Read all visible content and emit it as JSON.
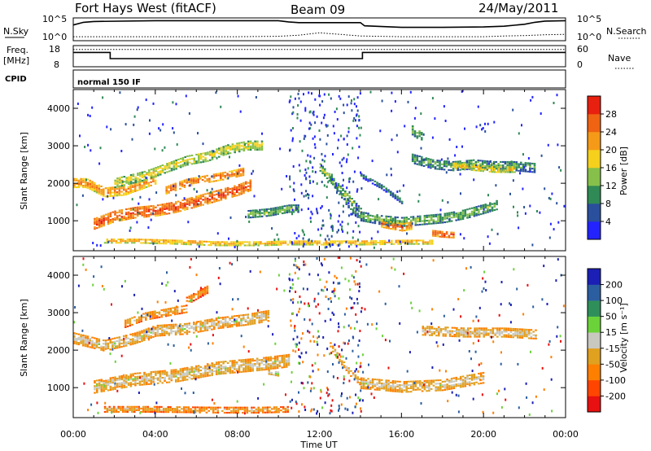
{
  "header": {
    "radar": "Fort Hays West (fitACF)",
    "beam": "Beam 09",
    "date": "24/May/2011"
  },
  "noise_panel": {
    "left_label": "N.Sky",
    "right_label": "N.Search",
    "left_ticks": [
      "10^5",
      "10^0"
    ],
    "right_ticks": [
      "10^5",
      "10^0"
    ]
  },
  "freq_panel": {
    "left_label_1": "Freq.",
    "left_label_2": "[MHz]",
    "right_label": "Nave",
    "left_ticks": [
      "18",
      "8"
    ],
    "right_ticks": [
      "60",
      "0"
    ]
  },
  "cpid_panel": {
    "label": "CPID",
    "program": "normal 150 IF"
  },
  "power_panel": {
    "ylabel": "Slant Range [km]",
    "colorbar_label": "Power [dB]",
    "colorbar_ticks": [
      "28",
      "24",
      "20",
      "16",
      "12",
      "8",
      "4"
    ],
    "colors": [
      "#2323ff",
      "#2a4f9c",
      "#2f8a55",
      "#86c04a",
      "#f5d01d",
      "#f59a18",
      "#f06313",
      "#e8200f"
    ]
  },
  "velocity_panel": {
    "ylabel": "Slant Range [km]",
    "colorbar_label": "Velocity [m s⁻¹]",
    "colorbar_ticks": [
      "200",
      "100",
      "50",
      "15",
      "-15",
      "-50",
      "-100",
      "-200"
    ],
    "colors": [
      "#1b1fb5",
      "#2b5ea0",
      "#2f8f5a",
      "#6bd23a",
      "#c8c8c0",
      "#e0a020",
      "#ff7f00",
      "#ff4500",
      "#e81010"
    ]
  },
  "x_axis": {
    "label": "Time UT",
    "ticks": [
      "00:00",
      "04:00",
      "08:00",
      "12:00",
      "16:00",
      "20:00",
      "00:00"
    ]
  },
  "y_ticks": [
    "1000",
    "2000",
    "3000",
    "4000"
  ],
  "chart_data": [
    {
      "type": "line",
      "title": "Fort Hays West (fitACF)",
      "ylabel": "N.Sky",
      "xlim": [
        0,
        24
      ],
      "ylim": [
        0,
        5
      ],
      "series": [
        {
          "name": "N.Sky",
          "x": [
            0,
            0.5,
            1,
            4,
            8,
            10,
            10.5,
            11,
            12,
            13,
            14,
            14.2,
            16,
            18,
            20,
            21,
            22,
            22.5,
            23,
            24
          ],
          "y": [
            3.6,
            4.3,
            4.5,
            4.7,
            4.7,
            4.7,
            4.4,
            4.2,
            4.2,
            4.2,
            4.2,
            3.4,
            3.0,
            3.0,
            3.1,
            3.3,
            3.8,
            4.3,
            4.6,
            4.7
          ]
        },
        {
          "name": "N.Search",
          "x": [
            0,
            2,
            4,
            8,
            10,
            11,
            12,
            13,
            14,
            16,
            20,
            21,
            22,
            23,
            24
          ],
          "y": [
            0.6,
            0.6,
            0.6,
            0.6,
            0.7,
            1.0,
            1.6,
            1.2,
            0.8,
            0.6,
            0.6,
            0.8,
            0.9,
            1.1,
            1.2
          ]
        }
      ]
    },
    {
      "type": "line",
      "ylabel": "Freq. [MHz]",
      "xlim": [
        0,
        24
      ],
      "ylim": [
        8,
        18
      ],
      "series": [
        {
          "name": "Freq.",
          "x": [
            0,
            1.8,
            1.8,
            14.1,
            14.1,
            24
          ],
          "y": [
            15.8,
            15.8,
            12.0,
            12.0,
            15.8,
            15.8
          ]
        },
        {
          "name": "Nave",
          "x": [
            0,
            24
          ],
          "y": [
            17.6,
            17.6
          ]
        }
      ]
    },
    {
      "type": "heatmap",
      "ylabel": "Slant Range [km]",
      "xlabel": "Time UT",
      "xlim": [
        0,
        24
      ],
      "ylim": [
        200,
        4500
      ],
      "colorbar": "Power [dB]",
      "clim": [
        0,
        32
      ],
      "regions": [
        {
          "x": [
            0,
            0.6,
            1.5,
            2.5,
            4.0
          ],
          "y": [
            2000,
            2000,
            1750,
            1800,
            2100
          ],
          "thickness": 260,
          "value": 24
        },
        {
          "x": [
            2.0,
            3.5,
            4.5,
            5.5,
            6.5,
            7.5,
            8.5,
            9.2
          ],
          "y": [
            2000,
            2200,
            2400,
            2600,
            2700,
            2900,
            3000,
            3000
          ],
          "thickness": 260,
          "value": 18
        },
        {
          "x": [
            4.5,
            5.5,
            6.5,
            7.5,
            8.3
          ],
          "y": [
            1800,
            2000,
            2100,
            2200,
            2300
          ],
          "thickness": 200,
          "value": 26
        },
        {
          "x": [
            1.0,
            2.0,
            3.0,
            4.0,
            5.0,
            6.0,
            7.0,
            8.0,
            8.7
          ],
          "y": [
            900,
            1100,
            1200,
            1250,
            1350,
            1500,
            1650,
            1800,
            1950
          ],
          "thickness": 280,
          "value": 28
        },
        {
          "x": [
            8.5,
            9.5,
            10.5,
            11.0
          ],
          "y": [
            1150,
            1200,
            1300,
            1300
          ],
          "thickness": 180,
          "value": 14
        },
        {
          "x": [
            1.5,
            3.0,
            5.0,
            7.0,
            9.0,
            10.5,
            12.0,
            14.0,
            16.0,
            17.5
          ],
          "y": [
            450,
            450,
            420,
            380,
            380,
            400,
            400,
            400,
            420,
            420
          ],
          "thickness": 120,
          "value": 22
        },
        {
          "x": [
            12.0,
            12.5,
            13.0,
            13.5,
            14.0
          ],
          "y": [
            2400,
            2100,
            1800,
            1500,
            1200
          ],
          "thickness": 180,
          "value": 16
        },
        {
          "x": [
            12.5,
            13.0,
            13.5,
            14.0
          ],
          "y": [
            2100,
            1700,
            1300,
            1050
          ],
          "thickness": 130,
          "value": 12
        },
        {
          "x": [
            14.0,
            14.5,
            15.0,
            15.5,
            16.0
          ],
          "y": [
            2200,
            2050,
            1900,
            1700,
            1500
          ],
          "thickness": 130,
          "value": 10
        },
        {
          "x": [
            14.0,
            15.0,
            16.0,
            17.0,
            18.0,
            19.0,
            20.0,
            20.6
          ],
          "y": [
            1100,
            1000,
            950,
            1000,
            1050,
            1150,
            1300,
            1400
          ],
          "thickness": 240,
          "value": 14
        },
        {
          "x": [
            15.0,
            15.5,
            16.0,
            16.5
          ],
          "y": [
            900,
            850,
            800,
            850
          ],
          "thickness": 180,
          "value": 26
        },
        {
          "x": [
            17.5,
            18.0,
            18.5
          ],
          "y": [
            650,
            620,
            600
          ],
          "thickness": 150,
          "value": 28
        },
        {
          "x": [
            16.5,
            17.5,
            18.5,
            19.5,
            20.5,
            21.5,
            22.5
          ],
          "y": [
            2650,
            2500,
            2450,
            2500,
            2450,
            2450,
            2400
          ],
          "thickness": 260,
          "value": 12
        },
        {
          "x": [
            18.5,
            19.5,
            20.5,
            21.5
          ],
          "y": [
            2450,
            2400,
            2350,
            2350
          ],
          "thickness": 150,
          "value": 20
        },
        {
          "x": [
            16.5,
            17.0
          ],
          "y": [
            3400,
            3200
          ],
          "thickness": 250,
          "value": 14
        }
      ]
    },
    {
      "type": "heatmap",
      "ylabel": "Slant Range [km]",
      "xlabel": "Time UT",
      "xlim": [
        0,
        24
      ],
      "ylim": [
        200,
        4500
      ],
      "colorbar": "Velocity [m s⁻¹]",
      "clim": [
        -200,
        200
      ],
      "regions": [
        {
          "x": [
            0,
            1.5,
            3.0,
            4.0,
            5.5,
            7.0,
            8.5,
            9.5
          ],
          "y": [
            2300,
            2100,
            2300,
            2500,
            2550,
            2700,
            2800,
            2900
          ],
          "thickness": 280,
          "value": 0
        },
        {
          "x": [
            1.0,
            3.0,
            5.0,
            7.0,
            9.0,
            10.5
          ],
          "y": [
            1000,
            1200,
            1300,
            1500,
            1600,
            1700
          ],
          "thickness": 320,
          "value": 0
        },
        {
          "x": [
            2.5,
            3.5,
            4.5,
            5.5
          ],
          "y": [
            2700,
            2900,
            3000,
            3100
          ],
          "thickness": 220,
          "value": -30
        },
        {
          "x": [
            5.5,
            6.0,
            6.5
          ],
          "y": [
            3300,
            3450,
            3600
          ],
          "thickness": 200,
          "value": -60
        },
        {
          "x": [
            1.5,
            4.0,
            7.0,
            9.0,
            10.5
          ],
          "y": [
            400,
            400,
            380,
            380,
            400
          ],
          "thickness": 140,
          "value": -30
        },
        {
          "x": [
            14.0,
            16.0,
            18.0,
            20.0
          ],
          "y": [
            1100,
            1000,
            1050,
            1250
          ],
          "thickness": 280,
          "value": 0
        },
        {
          "x": [
            17.0,
            19.0,
            21.0,
            22.5
          ],
          "y": [
            2500,
            2450,
            2450,
            2400
          ],
          "thickness": 230,
          "value": 0
        },
        {
          "x": [
            12.5,
            13.0,
            13.5,
            14.0
          ],
          "y": [
            2100,
            1700,
            1350,
            1100
          ],
          "thickness": 140,
          "value": 0
        },
        {
          "x": [
            9.5,
            10.0
          ],
          "y": [
            1400,
            1350
          ],
          "thickness": 120,
          "value": 40
        }
      ]
    }
  ]
}
